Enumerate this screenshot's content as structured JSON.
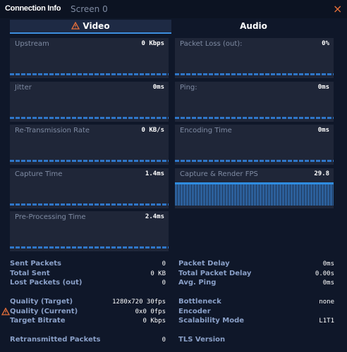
{
  "header": {
    "title": "Connection Info",
    "subtitle": "Screen 0",
    "close": "×"
  },
  "tabs": [
    "Video",
    "Audio"
  ],
  "graphs": [
    {
      "label": "Upstream",
      "value": "0 Kbps"
    },
    {
      "label": "Packet Loss (out):",
      "value": "0%"
    },
    {
      "label": "Jitter",
      "value": "0ms"
    },
    {
      "label": "Ping:",
      "value": "0ms"
    },
    {
      "label": "Re-Transmission Rate",
      "value": "0 KB/s"
    },
    {
      "label": "Encoding Time",
      "value": "0ms"
    },
    {
      "label": "Capture Time",
      "value": "1.4ms"
    },
    {
      "label": "Capture & Render FPS",
      "value": "29.8"
    },
    {
      "label": "Pre-Processing Time",
      "value": "2.4ms"
    }
  ],
  "stats": [
    {
      "left": [
        {
          "label": "Sent Packets",
          "value": "0"
        },
        {
          "label": "Total Sent",
          "value": "0 KB"
        },
        {
          "label": "Lost Packets (out)",
          "value": "0"
        }
      ],
      "right": [
        {
          "label": "Packet Delay",
          "value": "0ms"
        },
        {
          "label": "Total Packet Delay",
          "value": "0.00s"
        },
        {
          "label": "Avg. Ping",
          "value": "0ms"
        }
      ]
    },
    {
      "left": [
        {
          "label": "Quality (Target)",
          "value": "1280x720 30fps"
        },
        {
          "label": "Quality (Current)",
          "value": "0x0 0fps"
        },
        {
          "label": "Target Bitrate",
          "value": "0 Kbps"
        }
      ],
      "right": [
        {
          "label": "Bottleneck",
          "value": "none"
        },
        {
          "label": "Encoder"
        },
        {
          "label": "Scalability Mode",
          "value": "L1T1"
        }
      ]
    },
    {
      "left": [
        {
          "label": "Retransmitted Packets",
          "value": "0"
        }
      ],
      "right": [
        {
          "label": "TLS Version"
        }
      ]
    }
  ]
}
